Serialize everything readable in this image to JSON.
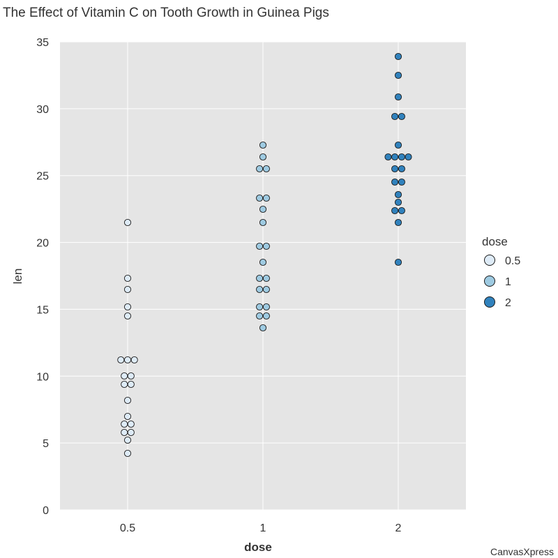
{
  "chart_data": {
    "type": "scatter",
    "title": "The Effect of Vitamin C on Tooth Growth in Guinea Pigs",
    "xlabel": "dose",
    "ylabel": "len",
    "categories": [
      "0.5",
      "1",
      "2"
    ],
    "ylim": [
      0,
      35
    ],
    "yticks": [
      0,
      5,
      10,
      15,
      20,
      25,
      30,
      35
    ],
    "grid": true,
    "legend": {
      "title": "dose",
      "position": "right",
      "entries": [
        {
          "label": "0.5",
          "color": "#deebf7"
        },
        {
          "label": "1",
          "color": "#9ecae1"
        },
        {
          "label": "2",
          "color": "#3182bd"
        }
      ]
    },
    "series": [
      {
        "name": "0.5",
        "color": "#deebf7",
        "values": [
          4.2,
          5.2,
          5.8,
          6.4,
          7.0,
          8.2,
          9.4,
          9.7,
          10.0,
          11.2,
          11.2,
          11.5,
          14.5,
          15.2,
          16.5,
          17.3,
          21.5,
          10.0,
          6.4,
          5.8
        ]
      },
      {
        "name": "1",
        "color": "#9ecae1",
        "values": [
          13.6,
          14.5,
          14.5,
          15.2,
          15.5,
          16.5,
          16.5,
          17.3,
          17.6,
          18.5,
          19.7,
          19.7,
          21.5,
          22.5,
          23.3,
          23.6,
          25.5,
          25.8,
          26.4,
          27.3
        ]
      },
      {
        "name": "2",
        "color": "#3182bd",
        "values": [
          18.5,
          21.5,
          22.4,
          22.4,
          23.0,
          23.6,
          24.5,
          24.8,
          25.5,
          25.5,
          26.4,
          26.4,
          26.4,
          26.7,
          27.3,
          29.4,
          29.5,
          30.9,
          32.5,
          33.9
        ]
      }
    ]
  },
  "watermark": "CanvasXpress"
}
